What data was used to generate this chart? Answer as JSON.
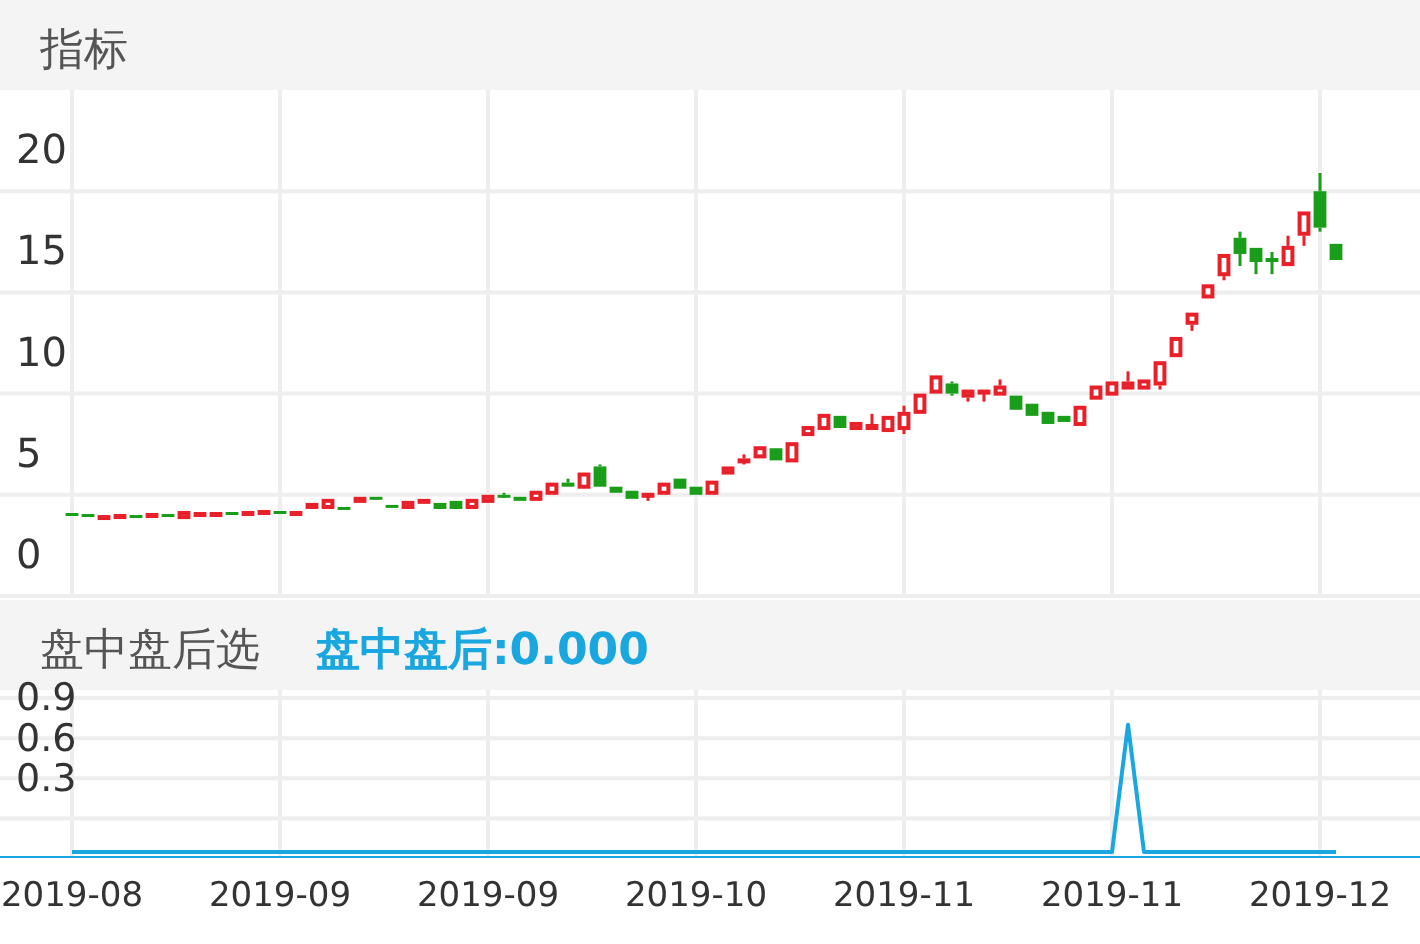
{
  "chart_data": [
    {
      "type": "candlestick",
      "title": "指标",
      "tick_labels": "y",
      "grid": true,
      "ylim": [
        0,
        25
      ],
      "yticks": [
        0,
        5,
        10,
        15,
        20
      ],
      "categories": [
        "2019-08",
        null,
        null,
        null,
        null,
        null,
        null,
        null,
        null,
        null,
        null,
        null,
        null,
        "2019-09",
        null,
        null,
        null,
        null,
        null,
        null,
        null,
        null,
        null,
        null,
        null,
        null,
        "2019-09",
        null,
        null,
        null,
        null,
        null,
        null,
        null,
        null,
        null,
        null,
        null,
        null,
        "2019-10",
        null,
        null,
        null,
        null,
        null,
        null,
        null,
        null,
        null,
        null,
        null,
        null,
        "2019-11",
        null,
        null,
        null,
        null,
        null,
        null,
        null,
        null,
        null,
        null,
        null,
        null,
        "2019-11",
        null,
        null,
        null,
        null,
        null,
        null,
        null,
        null,
        null,
        null,
        null,
        null,
        "2019-12",
        null
      ],
      "ohlc": [
        [
          4.1,
          4.1,
          4.0,
          4.0
        ],
        [
          4.05,
          4.05,
          3.95,
          3.95
        ],
        [
          3.9,
          4.0,
          3.9,
          4.0
        ],
        [
          3.95,
          4.05,
          3.95,
          4.05
        ],
        [
          4.0,
          4.0,
          3.9,
          3.9
        ],
        [
          4.0,
          4.1,
          4.0,
          4.1
        ],
        [
          4.05,
          4.05,
          3.95,
          3.95
        ],
        [
          3.8,
          4.2,
          3.8,
          4.2
        ],
        [
          4.05,
          4.15,
          4.05,
          4.15
        ],
        [
          4.05,
          4.15,
          4.05,
          4.15
        ],
        [
          4.15,
          4.15,
          4.05,
          4.05
        ],
        [
          4.1,
          4.2,
          4.1,
          4.2
        ],
        [
          4.15,
          4.25,
          4.15,
          4.25
        ],
        [
          4.2,
          4.2,
          4.1,
          4.1
        ],
        [
          4.1,
          4.2,
          4.1,
          4.2
        ],
        [
          4.3,
          4.6,
          4.3,
          4.6
        ],
        [
          4.3,
          4.8,
          4.3,
          4.8
        ],
        [
          4.4,
          4.4,
          4.3,
          4.3
        ],
        [
          4.6,
          4.9,
          4.6,
          4.9
        ],
        [
          4.9,
          4.9,
          4.8,
          4.8
        ],
        [
          4.5,
          4.5,
          4.4,
          4.4
        ],
        [
          4.3,
          4.7,
          4.3,
          4.7
        ],
        [
          4.6,
          4.8,
          4.6,
          4.8
        ],
        [
          4.6,
          4.6,
          4.3,
          4.3
        ],
        [
          4.7,
          4.7,
          4.3,
          4.3
        ],
        [
          4.3,
          4.8,
          4.3,
          4.8
        ],
        [
          4.6,
          5.0,
          4.6,
          5.0
        ],
        [
          5.0,
          5.1,
          4.85,
          4.9
        ],
        [
          4.9,
          4.9,
          4.7,
          4.7
        ],
        [
          4.7,
          5.2,
          4.7,
          5.2
        ],
        [
          5.0,
          5.6,
          5.0,
          5.6
        ],
        [
          5.6,
          5.8,
          5.4,
          5.4
        ],
        [
          5.3,
          6.1,
          5.3,
          6.1
        ],
        [
          6.4,
          6.5,
          5.4,
          5.4
        ],
        [
          5.4,
          5.4,
          5.1,
          5.1
        ],
        [
          5.2,
          5.2,
          4.8,
          4.8
        ],
        [
          4.9,
          5.1,
          4.7,
          5.1
        ],
        [
          5.0,
          5.6,
          5.0,
          5.6
        ],
        [
          5.8,
          5.8,
          5.3,
          5.3
        ],
        [
          5.4,
          5.4,
          5.0,
          5.0
        ],
        [
          5.0,
          5.7,
          5.0,
          5.7
        ],
        [
          6.0,
          6.4,
          6.0,
          6.4
        ],
        [
          6.6,
          7.0,
          6.5,
          6.8
        ],
        [
          6.8,
          7.4,
          6.8,
          7.4
        ],
        [
          7.3,
          7.3,
          6.7,
          6.7
        ],
        [
          6.6,
          7.6,
          6.6,
          7.6
        ],
        [
          7.9,
          8.4,
          7.9,
          8.4
        ],
        [
          8.2,
          9.0,
          8.2,
          9.0
        ],
        [
          8.9,
          8.9,
          8.3,
          8.3
        ],
        [
          8.2,
          8.6,
          8.2,
          8.6
        ],
        [
          8.2,
          9.0,
          8.2,
          8.5
        ],
        [
          8.1,
          8.9,
          8.1,
          8.9
        ],
        [
          8.2,
          9.4,
          8.0,
          9.1
        ],
        [
          9.0,
          10.0,
          9.0,
          10.0
        ],
        [
          10.0,
          10.9,
          10.0,
          10.9
        ],
        [
          10.5,
          10.6,
          9.9,
          10.0
        ],
        [
          9.8,
          10.2,
          9.6,
          10.2
        ],
        [
          10.0,
          10.2,
          9.6,
          10.2
        ],
        [
          9.9,
          10.7,
          9.9,
          10.4
        ],
        [
          9.9,
          9.9,
          9.2,
          9.2
        ],
        [
          9.5,
          9.5,
          8.9,
          8.9
        ],
        [
          9.1,
          9.1,
          8.5,
          8.5
        ],
        [
          8.9,
          8.9,
          8.6,
          8.6
        ],
        [
          8.4,
          9.4,
          8.4,
          9.4
        ],
        [
          9.7,
          10.4,
          9.7,
          10.4
        ],
        [
          9.9,
          10.6,
          9.9,
          10.6
        ],
        [
          10.2,
          11.1,
          10.2,
          10.6
        ],
        [
          10.2,
          10.7,
          10.2,
          10.7
        ],
        [
          10.4,
          11.6,
          10.2,
          11.6
        ],
        [
          11.8,
          12.8,
          11.8,
          12.8
        ],
        [
          13.4,
          14.0,
          13.1,
          14.0
        ],
        [
          14.7,
          15.4,
          14.7,
          15.4
        ],
        [
          15.8,
          16.9,
          15.6,
          16.9
        ],
        [
          17.7,
          18.0,
          16.3,
          16.9
        ],
        [
          17.2,
          17.2,
          15.9,
          16.5
        ],
        [
          16.7,
          17.0,
          15.9,
          16.5
        ],
        [
          16.3,
          17.8,
          16.3,
          17.3
        ],
        [
          17.8,
          19.0,
          17.3,
          19.0
        ],
        [
          20.0,
          20.9,
          18.0,
          18.2
        ],
        [
          17.4,
          17.4,
          16.6,
          16.6
        ]
      ]
    },
    {
      "type": "line",
      "title": "盘中盘后选",
      "subtitle": "盘中盘后:0.000",
      "grid": true,
      "ylim": [
        -0.28,
        0.96
      ],
      "yticks": [
        {
          "value": 0,
          "label": null
        },
        0.3,
        0.6,
        0.9
      ],
      "categories": [
        "2019-08",
        null,
        null,
        null,
        null,
        null,
        null,
        null,
        null,
        null,
        null,
        null,
        null,
        "2019-09",
        null,
        null,
        null,
        null,
        null,
        null,
        null,
        null,
        null,
        null,
        null,
        null,
        "2019-09",
        null,
        null,
        null,
        null,
        null,
        null,
        null,
        null,
        null,
        null,
        null,
        null,
        "2019-10",
        null,
        null,
        null,
        null,
        null,
        null,
        null,
        null,
        null,
        null,
        null,
        null,
        "2019-11",
        null,
        null,
        null,
        null,
        null,
        null,
        null,
        null,
        null,
        null,
        null,
        null,
        "2019-11",
        null,
        null,
        null,
        null,
        null,
        null,
        null,
        null,
        null,
        null,
        null,
        null,
        "2019-12",
        null
      ],
      "series": [
        {
          "color": "#1aa7e0",
          "values": [
            -0.25,
            -0.25,
            -0.25,
            -0.25,
            -0.25,
            -0.25,
            -0.25,
            -0.25,
            -0.25,
            -0.25,
            -0.25,
            -0.25,
            -0.25,
            -0.25,
            -0.25,
            -0.25,
            -0.25,
            -0.25,
            -0.25,
            -0.25,
            -0.25,
            -0.25,
            -0.25,
            -0.25,
            -0.25,
            -0.25,
            -0.25,
            -0.25,
            -0.25,
            -0.25,
            -0.25,
            -0.25,
            -0.25,
            -0.25,
            -0.25,
            -0.25,
            -0.25,
            -0.25,
            -0.25,
            -0.25,
            -0.25,
            -0.25,
            -0.25,
            -0.25,
            -0.25,
            -0.25,
            -0.25,
            -0.25,
            -0.25,
            -0.25,
            -0.25,
            -0.25,
            -0.25,
            -0.25,
            -0.25,
            -0.25,
            -0.25,
            -0.25,
            -0.25,
            -0.25,
            -0.25,
            -0.25,
            -0.25,
            -0.25,
            -0.25,
            -0.25,
            0.7,
            -0.25,
            -0.25,
            -0.25,
            -0.25,
            -0.25,
            -0.25,
            -0.25,
            -0.25,
            -0.25,
            -0.25,
            -0.25,
            -0.25,
            -0.25
          ]
        }
      ]
    }
  ]
}
